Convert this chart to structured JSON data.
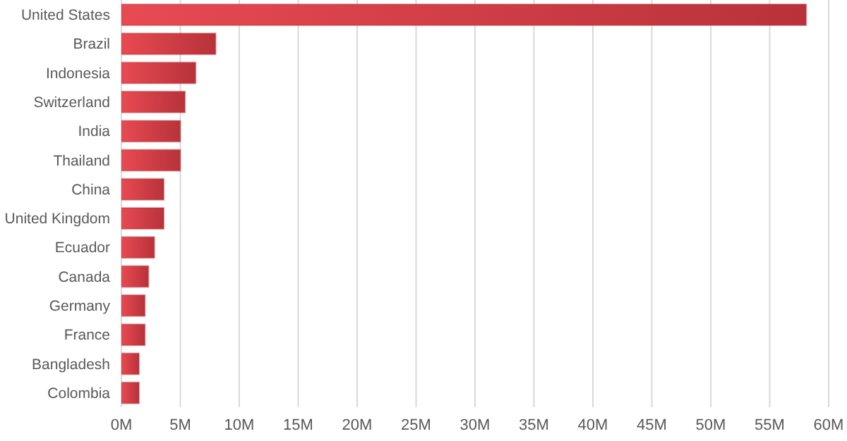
{
  "chart_data": {
    "type": "bar",
    "orientation": "horizontal",
    "categories": [
      "United States",
      "Brazil",
      "Indonesia",
      "Switzerland",
      "India",
      "Thailand",
      "China",
      "United Kingdom",
      "Ecuador",
      "Canada",
      "Germany",
      "France",
      "Bangladesh",
      "Colombia"
    ],
    "values": [
      58.1,
      8.0,
      6.3,
      5.4,
      5.0,
      5.0,
      3.6,
      3.6,
      2.8,
      2.3,
      2.0,
      2.0,
      1.5,
      1.5
    ],
    "color": "#b8323a",
    "xlim": [
      0,
      60
    ],
    "xticks": [
      {
        "value": 0,
        "label": "0M"
      },
      {
        "value": 5,
        "label": "5M"
      },
      {
        "value": 10,
        "label": "10M"
      },
      {
        "value": 15,
        "label": "15M"
      },
      {
        "value": 20,
        "label": "20M"
      },
      {
        "value": 25,
        "label": "25M"
      },
      {
        "value": 30,
        "label": "30M"
      },
      {
        "value": 35,
        "label": "35M"
      },
      {
        "value": 40,
        "label": "40M"
      },
      {
        "value": 45,
        "label": "45M"
      },
      {
        "value": 50,
        "label": "50M"
      },
      {
        "value": 55,
        "label": "55M"
      },
      {
        "value": 60,
        "label": "60M"
      }
    ],
    "grid": "x"
  }
}
